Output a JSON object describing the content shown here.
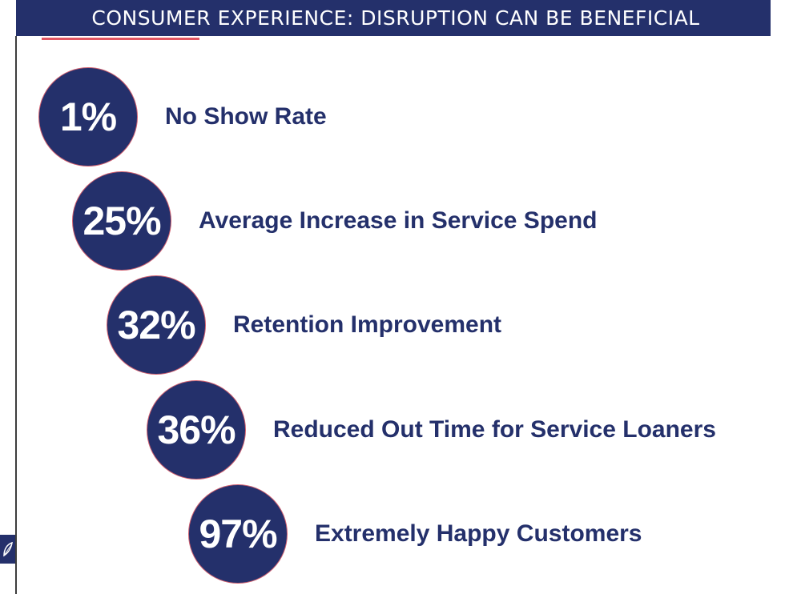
{
  "slide": {
    "title": "CONSUMER EXPERIENCE: DISRUPTION CAN BE BENEFICIAL",
    "logo_icon": "leaf-logo-icon"
  },
  "colors": {
    "navy": "#24306b",
    "accent_red": "#e15562",
    "text_white": "#ffffff"
  },
  "stats": [
    {
      "value": "1%",
      "label": "No Show Rate"
    },
    {
      "value": "25%",
      "label": "Average Increase in Service Spend"
    },
    {
      "value": "32%",
      "label": "Retention Improvement"
    },
    {
      "value": "36%",
      "label": "Reduced Out Time for Service Loaners"
    },
    {
      "value": "97%",
      "label": "Extremely Happy Customers"
    }
  ]
}
